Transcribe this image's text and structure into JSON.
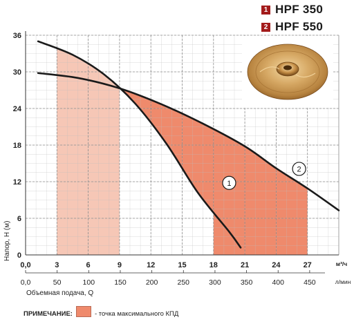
{
  "legend": [
    {
      "num": "1",
      "label": "HPF 350"
    },
    {
      "num": "2",
      "label": "HPF 550"
    }
  ],
  "image": {
    "name": "brass-impeller",
    "colors": [
      "#c99a5c",
      "#e8c48a",
      "#8a5a24"
    ]
  },
  "note": {
    "label": "ПРИМЕЧАНИЕ:",
    "text": "- точка максимального КПД",
    "swatch_color": "#ef8a6c"
  },
  "chart_data": {
    "type": "line",
    "xlabel": "Объемная подача, Q",
    "ylabel": "Напор, H (м)",
    "x_unit_primary": "м³/ч",
    "x_unit_secondary": "л/мин",
    "xlim": [
      0,
      30
    ],
    "ylim": [
      0,
      36
    ],
    "x_ticks": [
      "0,0",
      "3",
      "6",
      "9",
      "12",
      "15",
      "18",
      "21",
      "24",
      "27"
    ],
    "x_ticks_secondary": [
      "0,0",
      "50",
      "100",
      "150",
      "200",
      "250",
      "300",
      "350",
      "400",
      "450"
    ],
    "y_ticks": [
      "0",
      "6",
      "12",
      "18",
      "24",
      "30",
      "36"
    ],
    "grid": true,
    "series": [
      {
        "name": "1",
        "color": "#1a1a1a",
        "points": [
          [
            1.2,
            35
          ],
          [
            4.5,
            32.8
          ],
          [
            7.5,
            29.6
          ],
          [
            10.5,
            24.8
          ],
          [
            13.5,
            18.2
          ],
          [
            16.5,
            10.2
          ],
          [
            19.5,
            3.8
          ],
          [
            20.6,
            1.2
          ]
        ],
        "label_at": [
          19.5,
          11.8
        ]
      },
      {
        "name": "2",
        "color": "#1a1a1a",
        "points": [
          [
            1.2,
            29.8
          ],
          [
            5,
            29
          ],
          [
            9,
            27.3
          ],
          [
            13,
            24.7
          ],
          [
            17,
            21.5
          ],
          [
            21,
            17.8
          ],
          [
            24,
            14.2
          ],
          [
            27,
            10.9
          ],
          [
            30,
            7.3
          ]
        ],
        "label_at": [
          26.2,
          14.1
        ]
      }
    ],
    "efficiency_zones": [
      {
        "series": "1",
        "x_range": [
          3,
          9
        ],
        "color": "#f6c7b6"
      },
      {
        "series": "2",
        "x_range": [
          9,
          27
        ],
        "color": "#ef8a6c",
        "below_series": "2",
        "above_series": "1",
        "split_x": 18
      }
    ]
  }
}
